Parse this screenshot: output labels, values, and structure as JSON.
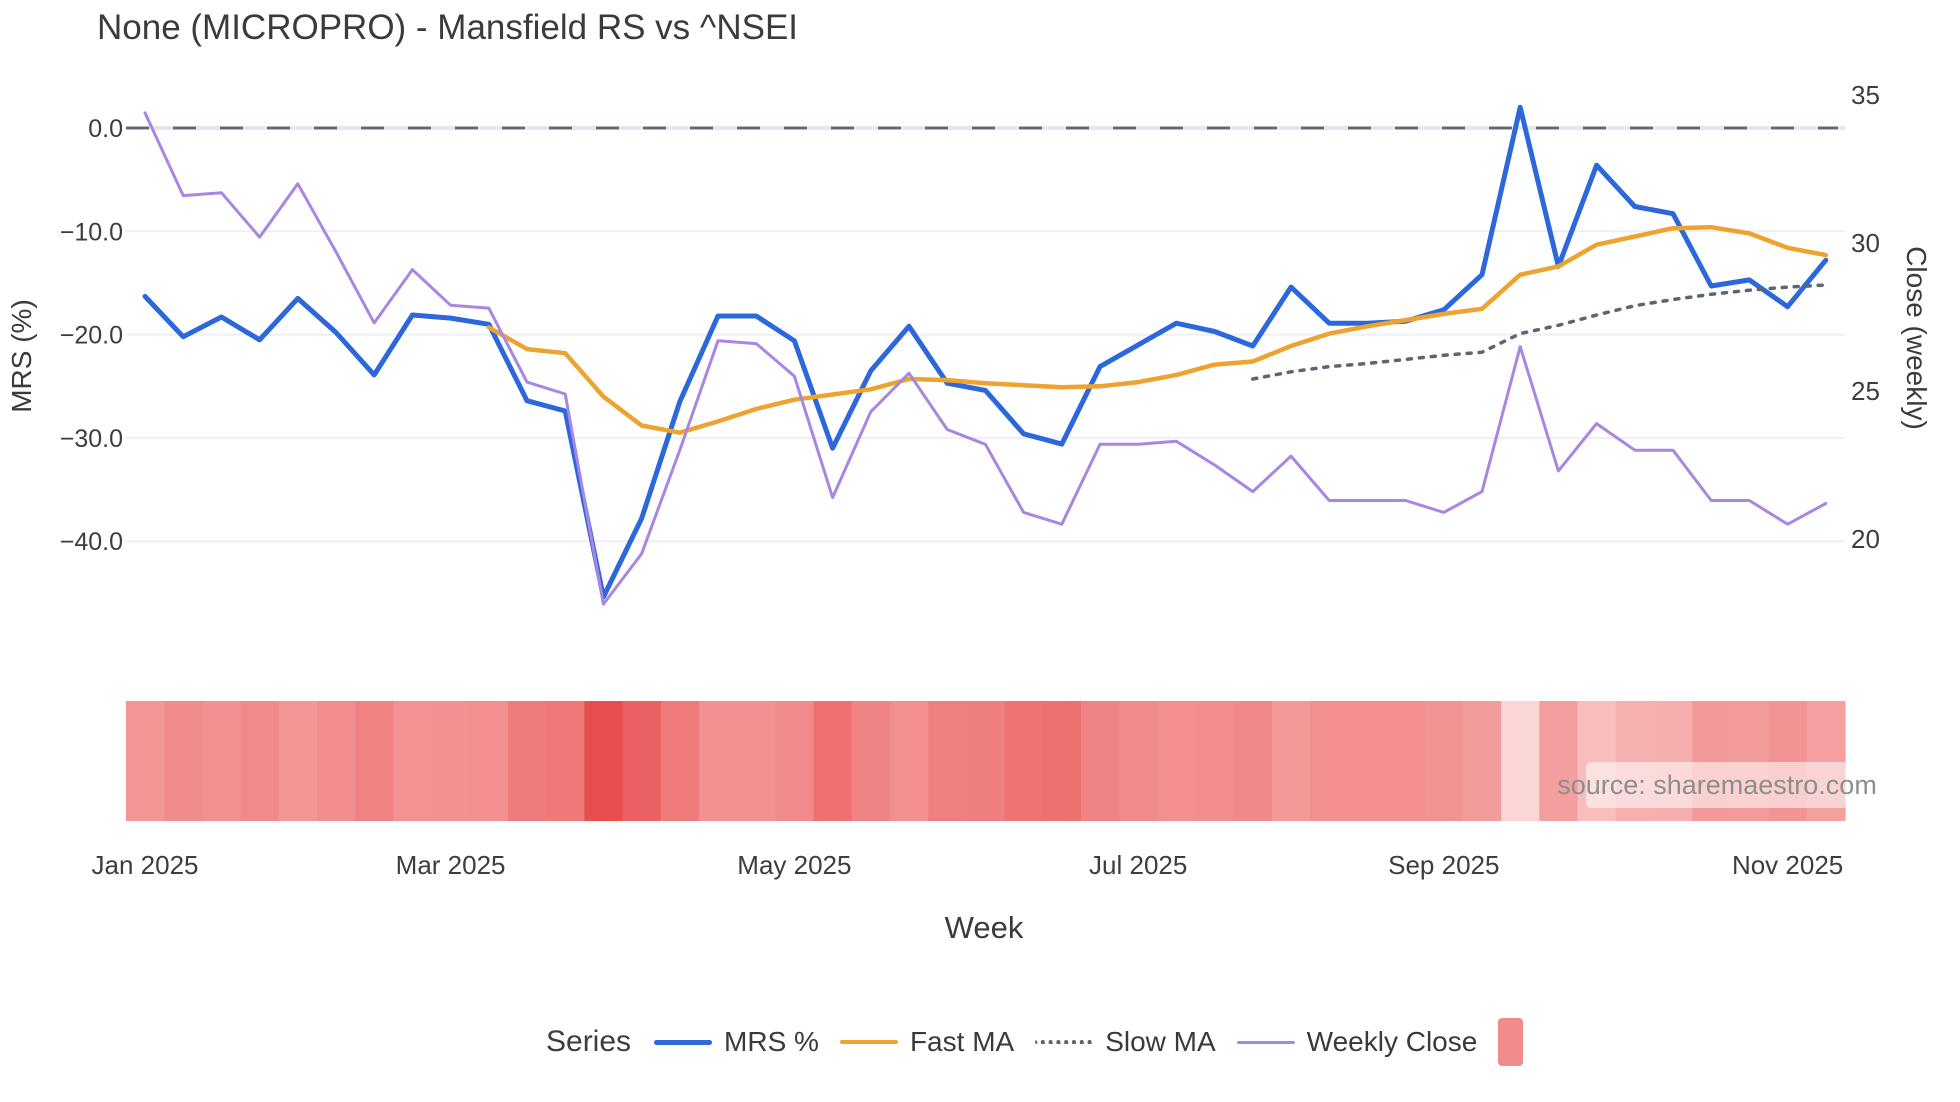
{
  "watermark": {
    "text": "source: sharemaestro.com"
  },
  "chart_data": {
    "type": "line",
    "title": "None (MICROPRO) - Mansfield RS vs ^NSEI",
    "xlabel": "Week",
    "legend_title": "Series",
    "n_points": 45,
    "x_ticks": [
      {
        "index": 0,
        "label": "Jan 2025"
      },
      {
        "index": 8,
        "label": "Mar 2025"
      },
      {
        "index": 17,
        "label": "May 2025"
      },
      {
        "index": 26,
        "label": "Jul 2025"
      },
      {
        "index": 34,
        "label": "Sep 2025"
      },
      {
        "index": 43,
        "label": "Nov 2025"
      }
    ],
    "left_axis": {
      "label": "MRS (%)",
      "ticks": [
        0,
        -10,
        -20,
        -30,
        -40
      ],
      "tick_labels": [
        "0.0",
        "−10.0",
        "−20.0",
        "−30.0",
        "−40.0"
      ],
      "zero_line_dashed": true
    },
    "right_axis": {
      "label": "Close (weekly)",
      "ticks": [
        35,
        30,
        25,
        20
      ],
      "tick_labels": [
        "35",
        "30",
        "25",
        "20"
      ]
    },
    "series": [
      {
        "name": "MRS %",
        "axis": "left",
        "color": "#2c68db",
        "width": 5,
        "dash": null,
        "values": [
          -16.3,
          -20.2,
          -18.3,
          -20.5,
          -16.5,
          -19.8,
          -23.9,
          -18.1,
          -18.4,
          -19.0,
          -26.4,
          -27.4,
          -45.4,
          -37.8,
          -26.5,
          -18.2,
          -18.2,
          -20.6,
          -31.0,
          -23.5,
          -19.2,
          -24.7,
          -25.4,
          -29.6,
          -30.6,
          -23.1,
          -21.0,
          -18.9,
          -19.7,
          -21.1,
          -15.4,
          -18.9,
          -18.9,
          -18.7,
          -17.6,
          -14.2,
          2.0,
          -13.4,
          -3.6,
          -7.6,
          -8.3,
          -15.3,
          -14.7,
          -17.3,
          -12.8
        ]
      },
      {
        "name": "Fast MA",
        "axis": "left",
        "color": "#eda32f",
        "width": 4.5,
        "dash": null,
        "values": [
          null,
          null,
          null,
          null,
          null,
          null,
          null,
          null,
          null,
          -19.3,
          -21.4,
          -21.8,
          -26.0,
          -28.8,
          -29.5,
          -28.4,
          -27.2,
          -26.3,
          -25.8,
          -25.3,
          -24.3,
          -24.4,
          -24.7,
          -24.9,
          -25.1,
          -25.0,
          -24.6,
          -23.9,
          -22.9,
          -22.6,
          -21.1,
          -19.9,
          -19.2,
          -18.6,
          -18.0,
          -17.5,
          -14.2,
          -13.4,
          -11.3,
          -10.5,
          -9.7,
          -9.6,
          -10.2,
          -11.6,
          -12.3
        ]
      },
      {
        "name": "Slow MA",
        "axis": "left",
        "color": "#5f6470",
        "width": 3.5,
        "dash": "4 8",
        "values": [
          null,
          null,
          null,
          null,
          null,
          null,
          null,
          null,
          null,
          null,
          null,
          null,
          null,
          null,
          null,
          null,
          null,
          null,
          null,
          null,
          null,
          null,
          null,
          null,
          null,
          null,
          null,
          null,
          null,
          -24.3,
          -23.6,
          -23.1,
          -22.8,
          -22.4,
          -22.0,
          -21.7,
          -19.9,
          -19.1,
          -18.1,
          -17.2,
          -16.6,
          -16.1,
          -15.7,
          -15.4,
          -15.2
        ]
      },
      {
        "name": "Weekly Close",
        "axis": "right",
        "color": "#a886e2",
        "width": 3,
        "dash": null,
        "values": [
          34.4,
          31.6,
          31.7,
          30.2,
          32.0,
          29.7,
          27.3,
          29.1,
          27.9,
          27.8,
          25.3,
          24.9,
          17.8,
          19.5,
          23.0,
          26.7,
          26.6,
          25.5,
          21.4,
          24.3,
          25.6,
          23.7,
          23.2,
          20.9,
          20.5,
          23.2,
          23.2,
          23.3,
          22.5,
          21.6,
          22.8,
          21.3,
          21.3,
          21.3,
          20.9,
          21.6,
          26.5,
          22.3,
          23.9,
          23.0,
          23.0,
          21.3,
          21.3,
          20.5,
          21.2
        ]
      }
    ],
    "heatmap_strip": {
      "metric": "MRS %",
      "color_light": "#fbd6d6",
      "color_dark": "#e94e4e",
      "gamma": 0.8,
      "legend_swatch_color": "#f28c8c"
    },
    "colors": {
      "grid": "#edeff6",
      "zero_band": "#e7e7f3",
      "zero_dash": "#66666f",
      "tick_text": "#3d3d3d"
    }
  }
}
